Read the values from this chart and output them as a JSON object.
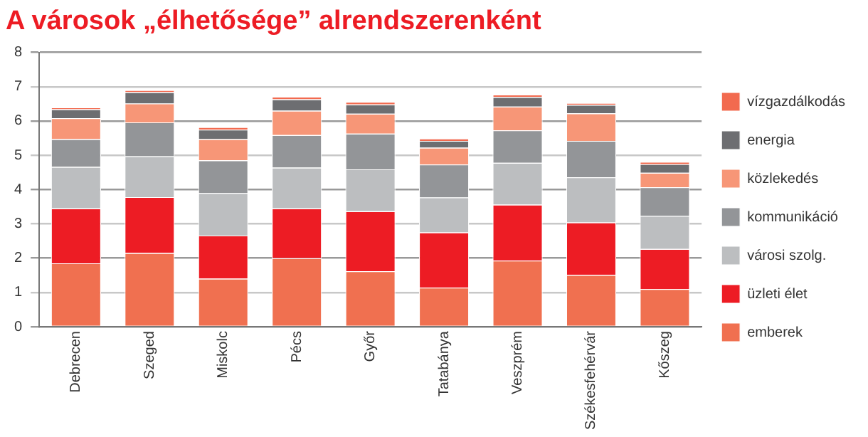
{
  "chart_data": {
    "type": "bar",
    "title": "A városok „élhetősége” alrendszerenként",
    "stacked": true,
    "grid": "y",
    "legend": "right",
    "ylim": [
      0,
      8
    ],
    "yticks": [
      0,
      1,
      2,
      3,
      4,
      5,
      6,
      7,
      8
    ],
    "categories": [
      "Debrecen",
      "Szeged",
      "Miskolc",
      "Pécs",
      "Győr",
      "Tatabánya",
      "Veszprém",
      "Székesfehérvár",
      "Kőszeg"
    ],
    "series": [
      {
        "name": "emberek",
        "color": "#f07050",
        "values": [
          1.85,
          2.15,
          1.4,
          2.0,
          1.62,
          1.14,
          1.93,
          1.51,
          1.1
        ]
      },
      {
        "name": "üzleti élet",
        "color": "#ed1c24",
        "values": [
          1.6,
          1.63,
          1.26,
          1.45,
          1.75,
          1.61,
          1.63,
          1.53,
          1.17
        ]
      },
      {
        "name": "városi szolg.",
        "color": "#bcbec0",
        "values": [
          1.21,
          1.19,
          1.24,
          1.19,
          1.22,
          1.02,
          1.22,
          1.32,
          0.96
        ]
      },
      {
        "name": "kommunikáció",
        "color": "#939598",
        "values": [
          0.81,
          0.99,
          0.95,
          0.95,
          1.04,
          0.96,
          0.95,
          1.06,
          0.84
        ]
      },
      {
        "name": "közlekedés",
        "color": "#f79677",
        "values": [
          0.61,
          0.55,
          0.62,
          0.71,
          0.58,
          0.49,
          0.69,
          0.8,
          0.42
        ]
      },
      {
        "name": "energia",
        "color": "#6d6e71",
        "values": [
          0.26,
          0.33,
          0.28,
          0.33,
          0.27,
          0.2,
          0.28,
          0.25,
          0.25
        ]
      },
      {
        "name": "vízgazdálkodás",
        "color": "#f26a4f",
        "values": [
          0.06,
          0.06,
          0.07,
          0.08,
          0.08,
          0.07,
          0.07,
          0.06,
          0.07
        ]
      }
    ]
  }
}
